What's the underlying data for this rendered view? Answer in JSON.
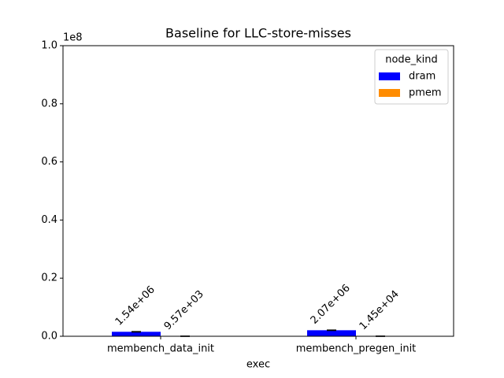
{
  "chart_data": {
    "type": "bar",
    "title": "Baseline for LLC-store-misses",
    "x_label": "exec",
    "y_offset_label": "1e8",
    "categories": [
      "membench_data_init",
      "membench_pregen_init"
    ],
    "series": [
      {
        "name": "dram",
        "color": "#0000ff",
        "values": [
          0.0154,
          0.0207
        ],
        "value_labels": [
          "1.54e+06",
          "2.07e+06"
        ],
        "errors": [
          0.0005,
          0.0005
        ]
      },
      {
        "name": "pmem",
        "color": "#ff8c00",
        "values": [
          9.57e-05,
          0.000145
        ],
        "value_labels": [
          "9.57e+03",
          "1.45e+04"
        ],
        "errors": [
          1e-05,
          1e-05
        ]
      }
    ],
    "ylim": [
      0,
      1
    ],
    "yticks": [
      {
        "value": 0,
        "label": "0.0"
      },
      0.2,
      0.4,
      0.6,
      0.8,
      {
        "value": 1,
        "label": "1.0"
      }
    ],
    "legend_title": "node_kind",
    "legend_position": "upper right"
  }
}
